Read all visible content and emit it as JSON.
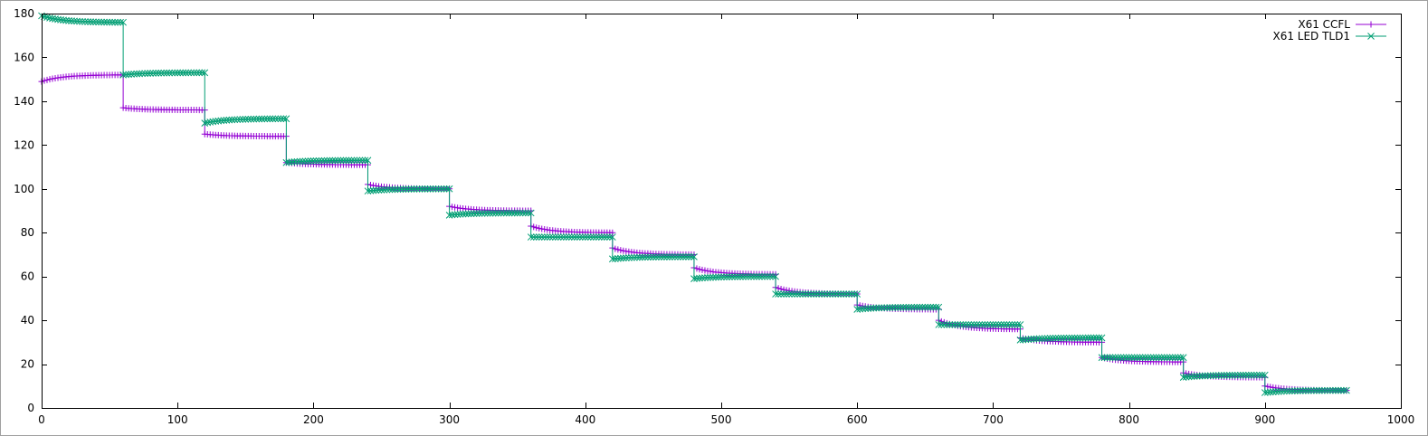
{
  "chart_data": {
    "type": "line",
    "title": "",
    "xlabel": "",
    "ylabel": "",
    "xlim": [
      0,
      1000
    ],
    "ylim": [
      0,
      180
    ],
    "x_ticks": [
      0,
      100,
      200,
      300,
      400,
      500,
      600,
      700,
      800,
      900,
      1000
    ],
    "y_ticks": [
      0,
      20,
      40,
      60,
      80,
      100,
      120,
      140,
      160,
      180
    ],
    "grid": false,
    "legend_position": "top-right",
    "series": [
      {
        "name": "X61 CCFL",
        "color": "#9400d3",
        "marker": "plus",
        "steps": [
          {
            "x_start": 0,
            "x_end": 60,
            "y_start": 149,
            "y_end": 152
          },
          {
            "x_start": 60,
            "x_end": 120,
            "y_start": 137,
            "y_end": 136
          },
          {
            "x_start": 120,
            "x_end": 180,
            "y_start": 125,
            "y_end": 124
          },
          {
            "x_start": 180,
            "x_end": 240,
            "y_start": 112,
            "y_end": 111
          },
          {
            "x_start": 240,
            "x_end": 300,
            "y_start": 102,
            "y_end": 100
          },
          {
            "x_start": 300,
            "x_end": 360,
            "y_start": 92,
            "y_end": 90
          },
          {
            "x_start": 360,
            "x_end": 420,
            "y_start": 83,
            "y_end": 80
          },
          {
            "x_start": 420,
            "x_end": 480,
            "y_start": 73,
            "y_end": 70
          },
          {
            "x_start": 480,
            "x_end": 540,
            "y_start": 64,
            "y_end": 61
          },
          {
            "x_start": 540,
            "x_end": 600,
            "y_start": 55,
            "y_end": 52
          },
          {
            "x_start": 600,
            "x_end": 660,
            "y_start": 47,
            "y_end": 45
          },
          {
            "x_start": 660,
            "x_end": 720,
            "y_start": 40,
            "y_end": 36
          },
          {
            "x_start": 720,
            "x_end": 780,
            "y_start": 32,
            "y_end": 30
          },
          {
            "x_start": 780,
            "x_end": 840,
            "y_start": 23,
            "y_end": 21
          },
          {
            "x_start": 840,
            "x_end": 900,
            "y_start": 16,
            "y_end": 14
          },
          {
            "x_start": 900,
            "x_end": 960,
            "y_start": 10,
            "y_end": 8
          }
        ]
      },
      {
        "name": "X61 LED TLD1",
        "color": "#009e73",
        "marker": "cross",
        "steps": [
          {
            "x_start": 0,
            "x_end": 60,
            "y_start": 179,
            "y_end": 176
          },
          {
            "x_start": 60,
            "x_end": 120,
            "y_start": 152,
            "y_end": 153
          },
          {
            "x_start": 120,
            "x_end": 180,
            "y_start": 130,
            "y_end": 132
          },
          {
            "x_start": 180,
            "x_end": 240,
            "y_start": 112,
            "y_end": 113
          },
          {
            "x_start": 240,
            "x_end": 300,
            "y_start": 99,
            "y_end": 100
          },
          {
            "x_start": 300,
            "x_end": 360,
            "y_start": 88,
            "y_end": 89
          },
          {
            "x_start": 360,
            "x_end": 420,
            "y_start": 78,
            "y_end": 78
          },
          {
            "x_start": 420,
            "x_end": 480,
            "y_start": 68,
            "y_end": 69
          },
          {
            "x_start": 480,
            "x_end": 540,
            "y_start": 59,
            "y_end": 60
          },
          {
            "x_start": 540,
            "x_end": 600,
            "y_start": 52,
            "y_end": 52
          },
          {
            "x_start": 600,
            "x_end": 660,
            "y_start": 45,
            "y_end": 46
          },
          {
            "x_start": 660,
            "x_end": 720,
            "y_start": 38,
            "y_end": 38
          },
          {
            "x_start": 720,
            "x_end": 780,
            "y_start": 31,
            "y_end": 32
          },
          {
            "x_start": 780,
            "x_end": 840,
            "y_start": 23,
            "y_end": 23
          },
          {
            "x_start": 840,
            "x_end": 900,
            "y_start": 14,
            "y_end": 15
          },
          {
            "x_start": 900,
            "x_end": 960,
            "y_start": 7,
            "y_end": 8
          }
        ]
      }
    ]
  }
}
